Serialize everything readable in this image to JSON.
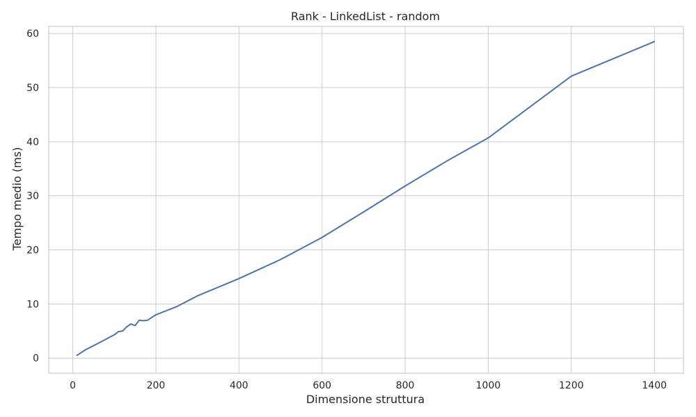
{
  "chart_data": {
    "type": "line",
    "title": "Rank - LinkedList - random",
    "xlabel": "Dimensione struttura",
    "ylabel": "Tempo medio (ms)",
    "xlim": [
      -58,
      1470
    ],
    "ylim": [
      -2.8,
      61.3
    ],
    "xticks": [
      0,
      200,
      400,
      600,
      800,
      1000,
      1200,
      1400
    ],
    "yticks": [
      0,
      10,
      20,
      30,
      40,
      50,
      60
    ],
    "grid": true,
    "series_color": "#4c72b0",
    "series": [
      {
        "x": [
          10,
          20,
          30,
          40,
          50,
          60,
          70,
          80,
          90,
          100,
          110,
          120,
          130,
          140,
          150,
          160,
          170,
          180,
          190,
          200,
          250,
          300,
          400,
          500,
          600,
          700,
          800,
          900,
          1000,
          1200,
          1400
        ],
        "y": [
          0.5,
          1.0,
          1.5,
          1.9,
          2.3,
          2.7,
          3.1,
          3.5,
          3.9,
          4.3,
          4.9,
          5.0,
          5.8,
          6.3,
          6.0,
          7.0,
          6.9,
          7.0,
          7.5,
          8.0,
          9.5,
          11.5,
          14.7,
          18.2,
          22.3,
          27.0,
          31.8,
          36.4,
          40.7,
          52.1,
          58.5
        ]
      }
    ]
  }
}
